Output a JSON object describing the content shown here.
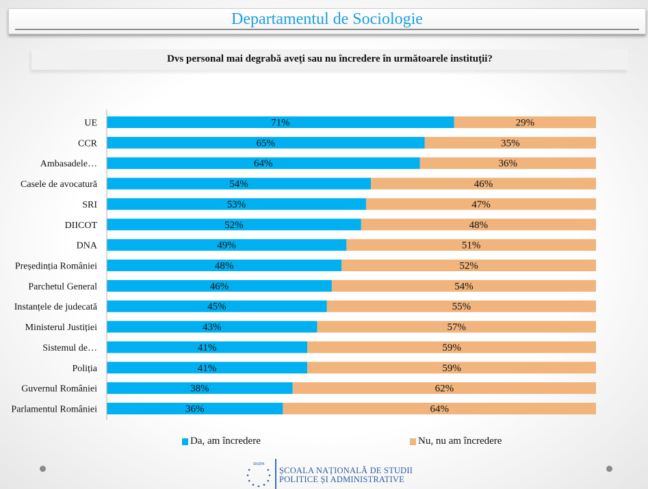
{
  "header": {
    "title": "Departamentul de Sociologie",
    "question": "Dvs personal mai degrabă aveți sau nu încredere în următoarele instituții?"
  },
  "colors": {
    "da": "#00b0f0",
    "nu": "#f0b47c",
    "title": "#1aa0dc"
  },
  "legend": {
    "items": [
      {
        "label": "Da, am încredere",
        "color": "#00b0f0"
      },
      {
        "label": "Nu, nu am încredere",
        "color": "#f0b47c"
      }
    ]
  },
  "logo": {
    "acronym": "SNSPA",
    "line1": "ȘCOALA NAȚIONALĂ DE STUDII",
    "line2": "POLITICE ȘI ADMINISTRATIVE"
  },
  "chart_data": {
    "type": "bar",
    "orientation": "horizontal",
    "stacked": true,
    "title": "Dvs personal mai degrabă aveți sau nu încredere în următoarele instituții?",
    "xlabel": "",
    "ylabel": "",
    "xlim": [
      0,
      100
    ],
    "grid": false,
    "legend_position": "bottom",
    "categories": [
      "UE",
      "CCR",
      "Ambasadele…",
      "Casele de avocatură",
      "SRI",
      "DIICOT",
      "DNA",
      "Președinția României",
      "Parchetul General",
      "Instanțele de judecată",
      "Ministerul Justiției",
      "Sistemul de…",
      "Poliția",
      "Guvernul României",
      "Parlamentul României"
    ],
    "series": [
      {
        "name": "Da, am încredere",
        "color": "#00b0f0",
        "values": [
          71,
          65,
          64,
          54,
          53,
          52,
          49,
          48,
          46,
          45,
          43,
          41,
          41,
          38,
          36
        ],
        "labels": [
          "71%",
          "65%",
          "64%",
          "54%",
          "53%",
          "52%",
          "49%",
          "48%",
          "46%",
          "45%",
          "43%",
          "41%",
          "41%",
          "38%",
          "36%"
        ]
      },
      {
        "name": "Nu, nu am încredere",
        "color": "#f0b47c",
        "values": [
          29,
          35,
          36,
          46,
          47,
          48,
          51,
          52,
          54,
          55,
          57,
          59,
          59,
          62,
          64
        ],
        "labels": [
          "29%",
          "35%",
          "36%",
          "46%",
          "47%",
          "48%",
          "51%",
          "52%",
          "54%",
          "55%",
          "57%",
          "59%",
          "59%",
          "62%",
          "64%"
        ]
      }
    ]
  }
}
